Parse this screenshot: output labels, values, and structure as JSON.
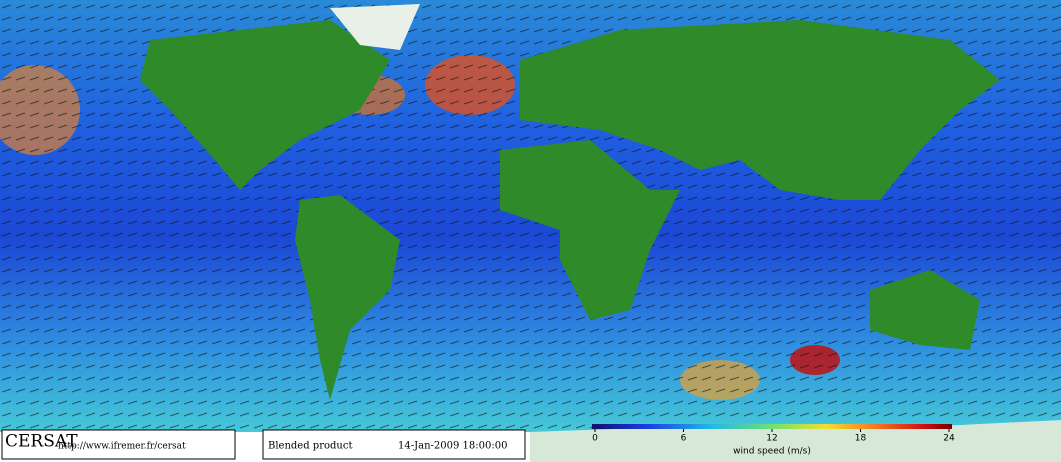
{
  "logo": "CERSAT",
  "url": "http://www.ifremer.fr/cersat",
  "product": "Blended product",
  "date": "14-Jan-2009 18:00:00",
  "colorbar": {
    "label": "wind speed (m/s)",
    "range": [
      0,
      24
    ],
    "ticks": [
      0,
      6,
      12,
      18,
      24
    ]
  }
}
